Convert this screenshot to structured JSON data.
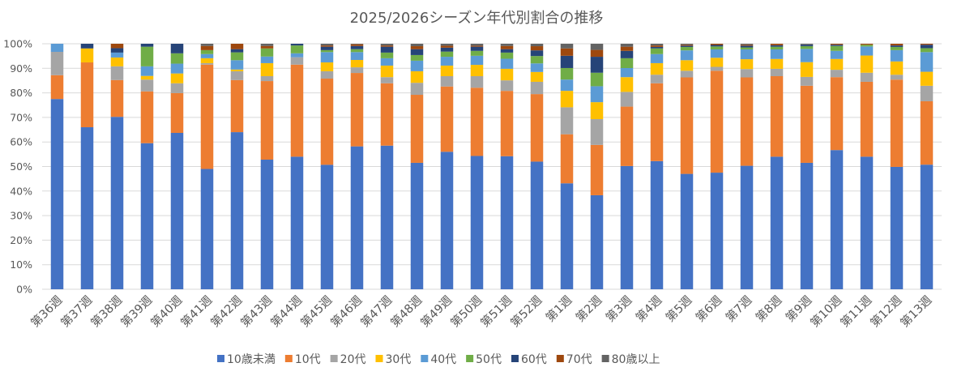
{
  "chart_data": {
    "type": "bar",
    "stacked": "percent",
    "title": "2025/2026シーズン年代別割合の推移",
    "xlabel": "",
    "ylabel": "",
    "ylim": [
      0,
      100
    ],
    "y_ticks": [
      "0%",
      "10%",
      "20%",
      "30%",
      "40%",
      "50%",
      "60%",
      "70%",
      "80%",
      "90%",
      "100%"
    ],
    "grid": true,
    "legend_position": "bottom",
    "categories": [
      "第36週",
      "第37週",
      "第38週",
      "第39週",
      "第40週",
      "第41週",
      "第42週",
      "第43週",
      "第44週",
      "第45週",
      "第46週",
      "第47週",
      "第48週",
      "第49週",
      "第50週",
      "第51週",
      "第52週",
      "第1週",
      "第2週",
      "第3週",
      "第4週",
      "第5週",
      "第6週",
      "第7週",
      "第8週",
      "第9週",
      "第10週",
      "第11週",
      "第12週",
      "第13週"
    ],
    "series": [
      {
        "name": "10歳未満",
        "color": "#4472C4",
        "values": [
          77.5,
          66,
          70.3,
          59.5,
          63.7,
          49,
          64,
          52.8,
          54,
          50.7,
          58.2,
          58.5,
          51.5,
          56,
          54.3,
          54.2,
          52,
          43.2,
          38.3,
          50.2,
          52.2,
          47,
          47.5,
          50.3,
          54,
          51.5,
          56.7,
          54,
          49.8,
          50.7
        ]
      },
      {
        "name": "10代",
        "color": "#ED7D31",
        "values": [
          9.7,
          26.4,
          15,
          21.1,
          16.2,
          42.5,
          21.2,
          32,
          37.5,
          35.1,
          29.9,
          25.4,
          27.7,
          26.6,
          27.8,
          26.6,
          27.5,
          20,
          20.5,
          24.2,
          31.7,
          39.3,
          41.5,
          36,
          32.8,
          31.4,
          29.7,
          30.5,
          35.5,
          25.8
        ]
      },
      {
        "name": "20代",
        "color": "#A5A5A5",
        "values": [
          9.5,
          0,
          5.6,
          4.8,
          4,
          0.6,
          3.6,
          2,
          3,
          3,
          2.3,
          2.5,
          4.9,
          4.2,
          4.7,
          4.3,
          5,
          11,
          10.5,
          6,
          3.5,
          2.7,
          1.6,
          3.4,
          3,
          3.6,
          3,
          3.7,
          2,
          6.3
        ]
      },
      {
        "name": "30代",
        "color": "#FFC000",
        "values": [
          0,
          5.7,
          3.6,
          1.5,
          4,
          2,
          0.7,
          5.3,
          0,
          3.6,
          3,
          4.7,
          4.7,
          4.3,
          4.6,
          4.7,
          4,
          6.7,
          6.9,
          6,
          4.7,
          4.3,
          3.7,
          4,
          4,
          6,
          4.4,
          7,
          5.4,
          5.7
        ]
      },
      {
        "name": "40代",
        "color": "#5B9BD5",
        "values": [
          3.3,
          0,
          2,
          3.9,
          4,
          1.7,
          3.8,
          2.7,
          1.6,
          4.2,
          3.2,
          3,
          4.3,
          3.6,
          3.7,
          4.1,
          3.5,
          4.6,
          6.5,
          3.7,
          3.7,
          4,
          3.4,
          4,
          3.9,
          5.4,
          3.3,
          3.7,
          4.6,
          8
        ]
      },
      {
        "name": "50代",
        "color": "#70AD47",
        "values": [
          0,
          0,
          0,
          8,
          4.2,
          1.6,
          3.2,
          3.3,
          3.2,
          0.8,
          1.2,
          2.3,
          2.3,
          2.1,
          2,
          2.5,
          3,
          4.7,
          5.5,
          4,
          2.3,
          1.4,
          1.2,
          0.8,
          1.1,
          1.1,
          2,
          0.7,
          1.3,
          1.6
        ]
      },
      {
        "name": "60代",
        "color": "#264478",
        "values": [
          0,
          1.9,
          1.8,
          1.2,
          3.9,
          0,
          1.3,
          0,
          0.7,
          1.4,
          1.3,
          2.4,
          2.4,
          1.6,
          1.7,
          1.4,
          2.3,
          5,
          6.5,
          3,
          0.6,
          0.5,
          0.6,
          0.7,
          0.6,
          0.6,
          0.5,
          0,
          0.6,
          1.4
        ]
      },
      {
        "name": "70代",
        "color": "#9E480E",
        "values": [
          0,
          0,
          1.8,
          0,
          0,
          1.7,
          2.2,
          1,
          0,
          0.5,
          0.7,
          0.5,
          1.2,
          0.8,
          0.4,
          1.3,
          1.7,
          3,
          2.8,
          1.7,
          0.6,
          0.4,
          0.5,
          0.4,
          0.6,
          0,
          0.4,
          0.4,
          0.7,
          0.4
        ]
      },
      {
        "name": "80歳以上",
        "color": "#636363",
        "values": [
          0,
          0,
          0,
          0,
          0,
          0.9,
          0,
          0.9,
          0,
          0.7,
          0.2,
          0.7,
          1,
          0.8,
          0.8,
          0.9,
          1,
          1.9,
          2.5,
          1.2,
          0.7,
          0.4,
          0,
          0.4,
          0,
          0.4,
          0,
          0,
          0,
          0
        ]
      }
    ]
  }
}
